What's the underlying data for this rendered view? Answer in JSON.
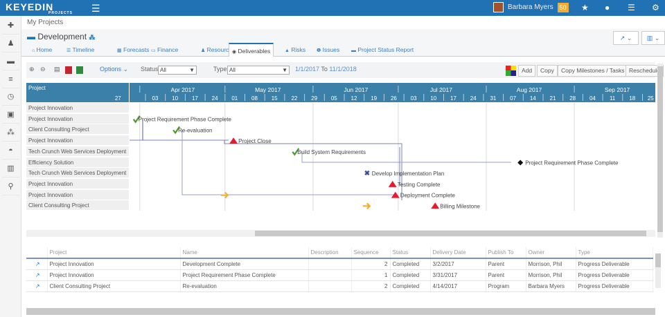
{
  "app": {
    "logo": "KEYEDIN",
    "logo_sub": "PROJECTS",
    "user": "Barbara Myers",
    "badge": "50"
  },
  "icons": {
    "top": [
      "star-icon",
      "globe-icon",
      "list-icon",
      "gear-icon"
    ],
    "sidebar": [
      "plus-icon",
      "person-icon",
      "briefcase-icon",
      "sliders-icon",
      "clock-icon",
      "money-icon",
      "cubes-icon",
      "dashboard-icon",
      "bar-chart-icon",
      "search-icon"
    ]
  },
  "breadcrumb": "My Projects",
  "project_title": "Development",
  "tabs": [
    {
      "label": "Home",
      "icon": "⌂"
    },
    {
      "label": "Timeline",
      "icon": "☰"
    },
    {
      "label": "Forecasts",
      "icon": "▦"
    },
    {
      "label": "Finance",
      "icon": "▭"
    },
    {
      "label": "Resource",
      "icon": "♟"
    },
    {
      "label": "Deliverables",
      "icon": "◉"
    },
    {
      "label": "Risks",
      "icon": "▲"
    },
    {
      "label": "Issues",
      "icon": "❶"
    },
    {
      "label": "Project Status Report",
      "icon": "▬"
    }
  ],
  "active_tab": "Deliverables",
  "toolbar": {
    "options": "Options ⌄",
    "status_label": "Status",
    "status_value": "All",
    "type_label": "Type",
    "type_value": "All",
    "date_from": "1/1/2017",
    "to": "To",
    "date_to": "11/1/2018",
    "add": "Add",
    "copy": "Copy",
    "copy_ms": "Copy Milestones / Tasks",
    "reschedule": "Reschedule"
  },
  "gantt": {
    "column_header": "Project",
    "months": [
      {
        "label": "Apr 2017",
        "start": "2017-04-01"
      },
      {
        "label": "May 2017",
        "start": "2017-05-01"
      },
      {
        "label": "Jun 2017",
        "start": "2017-06-01"
      },
      {
        "label": "Jul 2017",
        "start": "2017-07-01"
      },
      {
        "label": "Aug 2017",
        "start": "2017-08-01"
      },
      {
        "label": "Sep 2017",
        "start": "2017-09-01"
      }
    ],
    "week_labels": [
      "27",
      "03",
      "10",
      "17",
      "24",
      "01",
      "08",
      "15",
      "22",
      "29",
      "05",
      "12",
      "19",
      "26",
      "03",
      "10",
      "17",
      "24",
      "31",
      "07",
      "14",
      "21",
      "28",
      "04",
      "11",
      "18",
      "25 ."
    ],
    "rows": [
      "Project Innovation",
      "Project Innovation",
      "Client Consulting Project",
      "Project Innovation",
      "Tech Crunch Web Services Deployment",
      "Efficiency Solution",
      "Tech Crunch Web Services Deployment",
      "Project Innovation",
      "Project Innovation",
      "Client Consulting Project"
    ],
    "milestones": [
      {
        "row": 1,
        "date": "2017-03-31",
        "icon": "check",
        "label": "Project Requirement Phase Complete"
      },
      {
        "row": 2,
        "date": "2017-04-14",
        "icon": "check",
        "label": "Re-evaluation"
      },
      {
        "row": 3,
        "date": "2017-05-04",
        "icon": "triangle",
        "label": "Project Close"
      },
      {
        "row": 4,
        "date": "2017-05-26",
        "icon": "check",
        "label": "Build System Requirements"
      },
      {
        "row": 5,
        "date": "2017-08-13",
        "icon": "diamond",
        "label": "Project Requirement Phase Complete"
      },
      {
        "row": 6,
        "date": "2017-06-20",
        "icon": "x",
        "label": "Develop Implementation Plan"
      },
      {
        "row": 7,
        "date": "2017-06-29",
        "icon": "triangle",
        "label": "Testing Complete"
      },
      {
        "row": 8,
        "date": "2017-06-30",
        "icon": "triangle",
        "label": "Deployment Complete"
      },
      {
        "row": 8,
        "date": "2017-05-01",
        "icon": "arrow",
        "label": ""
      },
      {
        "row": 9,
        "date": "2017-06-20",
        "icon": "arrow",
        "label": ""
      },
      {
        "row": 9,
        "date": "2017-07-14",
        "icon": "triangle",
        "label": "Billing Milestone"
      }
    ]
  },
  "table": {
    "headers": [
      "",
      "Project",
      "Name",
      "Description",
      "Sequence",
      "Status",
      "Delivery Date",
      "Publish To",
      "Owner",
      "Type"
    ],
    "rows": [
      [
        "Project Innovation",
        "Development Complete",
        "",
        "2",
        "Completed",
        "3/2/2017",
        "Parent",
        "Morrison, Phil",
        "Progress Deliverable"
      ],
      [
        "Project Innovation",
        "Project Requirement Phase Complete",
        "",
        "1",
        "Completed",
        "3/31/2017",
        "Parent",
        "Morrison, Phil",
        "Progress Deliverable"
      ],
      [
        "Client Consulting Project",
        "Re-evaluation",
        "",
        "2",
        "Completed",
        "4/14/2017",
        "Program",
        "Barbara Myers",
        "Progress Deliverable"
      ]
    ]
  },
  "colors": {
    "topbar": "#2171b5",
    "gantt_header": "#3a80a8",
    "milestone_red": "#e8192c",
    "check_green": "#4a9a2a",
    "arrow_orange": "#f0b030"
  }
}
